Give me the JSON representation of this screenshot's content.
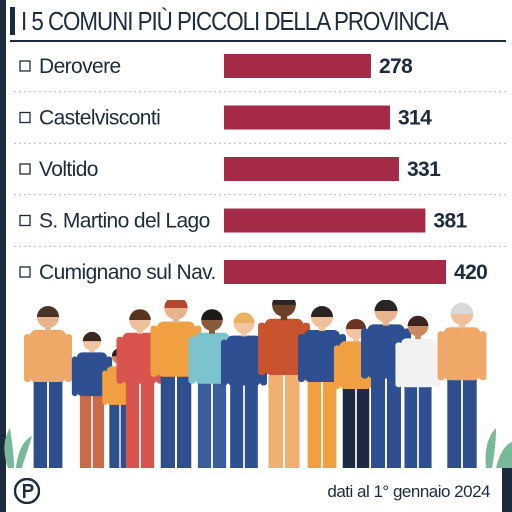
{
  "title": "I 5 COMUNI PIÙ PICCOLI DELLA PROVINCIA",
  "source": "dati al 1° gennaio 2024",
  "colors": {
    "bar": "#a52a45",
    "text": "#1d2b3f",
    "rule": "#1d2b3f"
  },
  "icons": {
    "bullet": "square-outline-icon",
    "logo": "newspaper-p-logo",
    "illustration": "crowd-of-people"
  },
  "chart_data": {
    "type": "bar",
    "orientation": "horizontal",
    "categories": [
      "Derovere",
      "Castelvisconti",
      "Voltido",
      "S. Martino del Lago",
      "Cumignano sul Nav."
    ],
    "values": [
      278,
      314,
      331,
      381,
      420
    ],
    "xlim": [
      0,
      420
    ],
    "grid": false,
    "legend": "none"
  }
}
